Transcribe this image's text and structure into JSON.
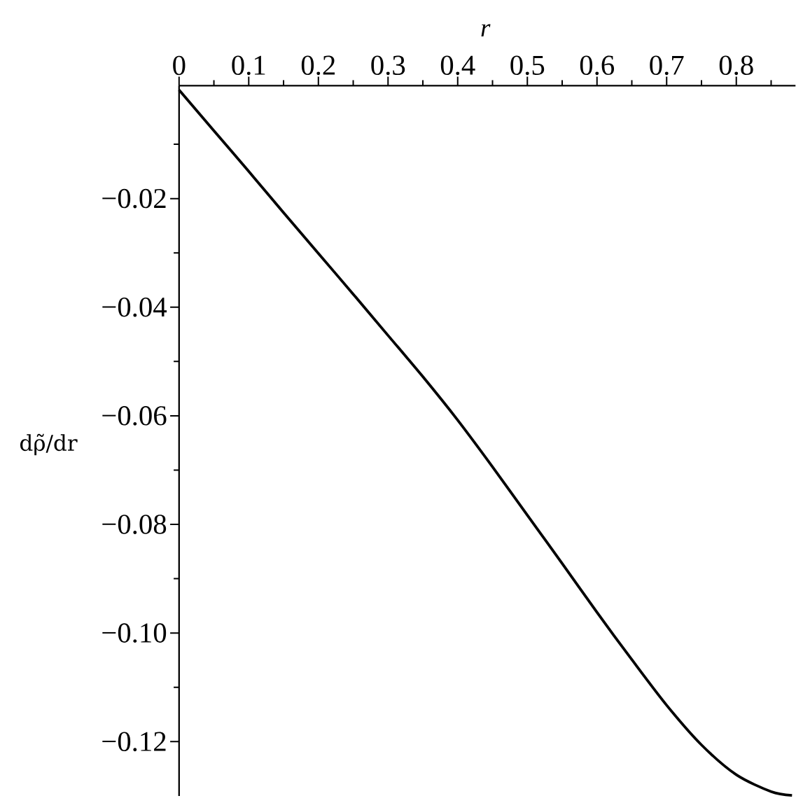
{
  "chart_data": {
    "type": "line",
    "xlabel": "r",
    "ylabel": "dρ̃/dr",
    "x": [
      0,
      0.05,
      0.1,
      0.15,
      0.2,
      0.25,
      0.3,
      0.35,
      0.4,
      0.45,
      0.5,
      0.55,
      0.6,
      0.65,
      0.7,
      0.75,
      0.8,
      0.85,
      0.88
    ],
    "series": [
      {
        "color": "#000000",
        "values": [
          0,
          -0.0075,
          -0.015,
          -0.0226,
          -0.0301,
          -0.0376,
          -0.0452,
          -0.0528,
          -0.0608,
          -0.0694,
          -0.0783,
          -0.0872,
          -0.0962,
          -0.1049,
          -0.1133,
          -0.1206,
          -0.1261,
          -0.1292,
          -0.1299
        ]
      }
    ],
    "xlim": [
      0,
      0.885
    ],
    "ylim": [
      -0.13,
      0.0008
    ],
    "xticks": [
      0,
      {
        "value": 0.05,
        "label": null
      },
      0.1,
      {
        "value": 0.15,
        "label": null
      },
      0.2,
      {
        "value": 0.25,
        "label": null
      },
      0.3,
      {
        "value": 0.35,
        "label": null
      },
      0.4,
      {
        "value": 0.45,
        "label": null
      },
      0.5,
      {
        "value": 0.55,
        "label": null
      },
      0.6,
      {
        "value": 0.65,
        "label": null
      },
      0.7,
      {
        "value": 0.75,
        "label": null
      },
      0.8,
      {
        "value": 0.85,
        "label": null
      }
    ],
    "yticks": [
      {
        "value": -0.01,
        "label": null
      },
      {
        "value": -0.02,
        "label": "−0.02"
      },
      {
        "value": -0.03,
        "label": null
      },
      {
        "value": -0.04,
        "label": "−0.04"
      },
      {
        "value": -0.05,
        "label": null
      },
      {
        "value": -0.06,
        "label": "−0.06"
      },
      {
        "value": -0.07,
        "label": null
      },
      {
        "value": -0.08,
        "label": "−0.08"
      },
      {
        "value": -0.09,
        "label": null
      },
      {
        "value": -0.1,
        "label": "−0.10"
      },
      {
        "value": -0.11,
        "label": null
      },
      {
        "value": -0.12,
        "label": "−0.12"
      }
    ],
    "line_style": "solid"
  }
}
